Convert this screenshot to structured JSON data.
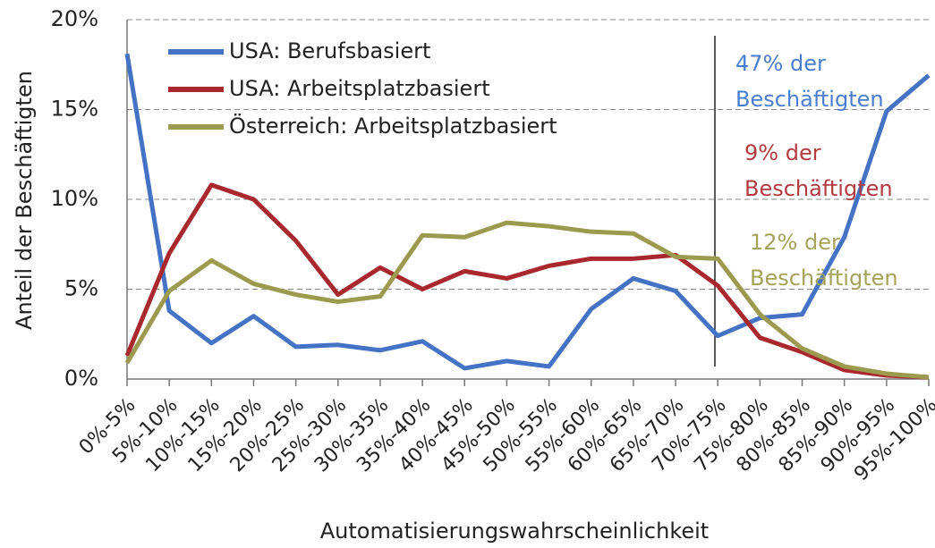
{
  "chart_data": {
    "type": "line",
    "x_label": "Automatisierungswahrscheinlichkeit",
    "y_label": "Anteil der Beschäftigten",
    "categories": [
      "0%-5%",
      "5%-10%",
      "10%-15%",
      "15%-20%",
      "20%-25%",
      "25%-30%",
      "30%-35%",
      "35%-40%",
      "40%-45%",
      "45%-50%",
      "50%-55%",
      "55%-60%",
      "60%-65%",
      "65%-70%",
      "70%-75%",
      "75%-80%",
      "80%-85%",
      "85%-90%",
      "90%-95%",
      "95%-100%"
    ],
    "series": [
      {
        "name": "USA: Berufsbasiert",
        "color": "#4472c4",
        "values": [
          18.1,
          3.8,
          2.0,
          3.5,
          1.8,
          1.9,
          1.6,
          2.1,
          0.6,
          1.0,
          0.7,
          3.9,
          5.6,
          4.9,
          2.4,
          3.4,
          3.6,
          7.9,
          14.9,
          16.9
        ]
      },
      {
        "name": "USA: Arbeitsplatzbasiert",
        "color": "#a8282e",
        "values": [
          1.3,
          7.0,
          10.8,
          10.0,
          7.7,
          4.7,
          6.2,
          5.0,
          6.0,
          5.6,
          6.3,
          6.7,
          6.7,
          6.9,
          5.2,
          2.3,
          1.5,
          0.5,
          0.2,
          0.1
        ]
      },
      {
        "name": "Österreich: Arbeitsplatzbasiert",
        "color": "#9c9a4e",
        "values": [
          0.9,
          4.9,
          6.6,
          5.3,
          4.7,
          4.3,
          4.6,
          8.0,
          7.9,
          8.7,
          8.5,
          8.2,
          8.1,
          6.8,
          6.7,
          3.6,
          1.7,
          0.7,
          0.3,
          0.1
        ]
      }
    ],
    "ylim": [
      0,
      20
    ],
    "yticks": [
      {
        "value": 0,
        "label": "0%"
      },
      {
        "value": 5,
        "label": "5%"
      },
      {
        "value": 10,
        "label": "10%"
      },
      {
        "value": 15,
        "label": "15%"
      },
      {
        "value": 20,
        "label": "20%"
      }
    ],
    "grid": true,
    "legend": "upper left",
    "annotations": [
      {
        "text": [
          "47% der",
          "Beschäftigten"
        ],
        "color": "#4a7ed0"
      },
      {
        "text": [
          "9% der",
          "Beschäftigten"
        ],
        "color": "#b23a40"
      },
      {
        "text": [
          "12% der",
          "Beschäftigten"
        ],
        "color": "#a5a35a"
      }
    ]
  }
}
